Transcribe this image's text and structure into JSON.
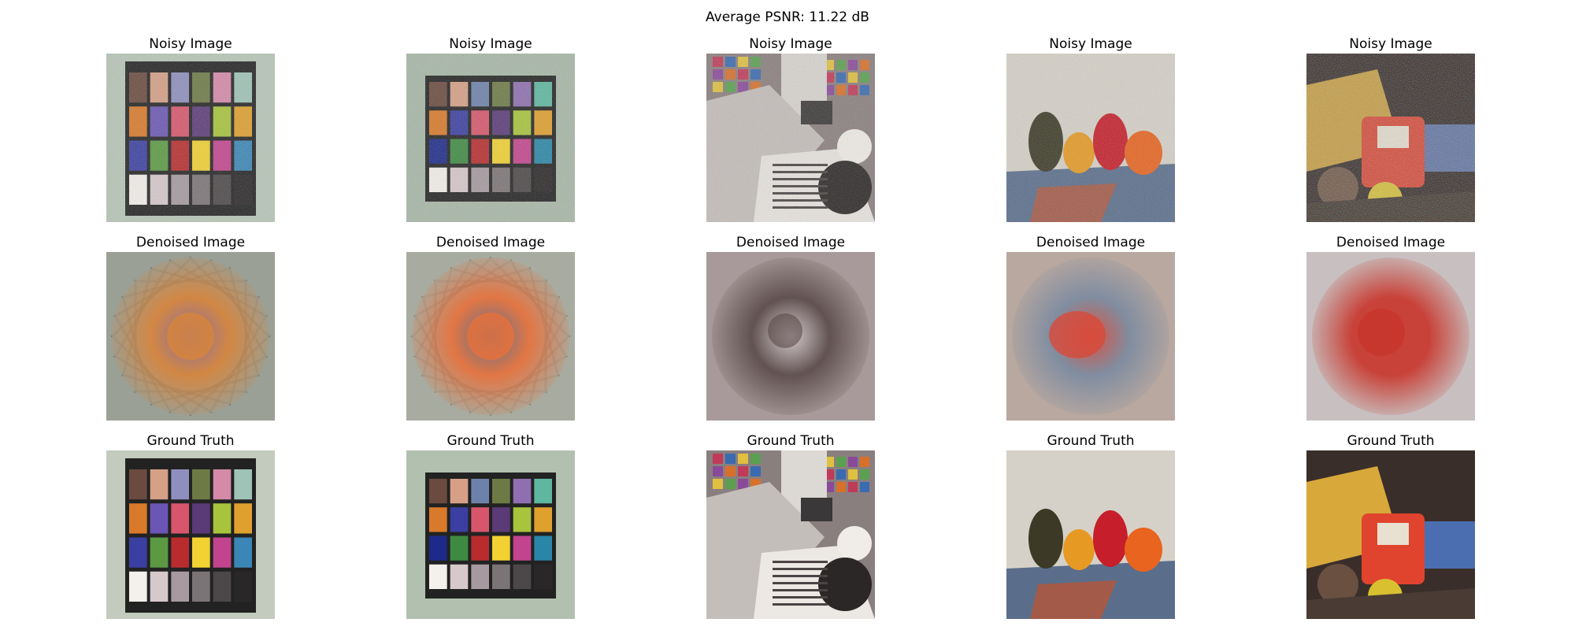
{
  "figure": {
    "suptitle": "Average PSNR: 11.22 dB"
  },
  "rows": [
    {
      "title": "Noisy Image",
      "images": [
        {
          "scene": "color-checker-portrait",
          "palette": [
            "#b8c6b8",
            "#222",
            "#6b4a3f",
            "#d6a086",
            "#8f8fbf",
            "#6e7a45",
            "#d58aa8",
            "#9fc3b6",
            "#d97a2a",
            "#6b56b5",
            "#d8566c",
            "#5b3a78",
            "#a8c43c",
            "#e0a02e",
            "#3b3fa1",
            "#5b9a43",
            "#b82c2e",
            "#f1d232",
            "#c3448e",
            "#3a86b7",
            "#f4f0ec",
            "#d7c8cc",
            "#a69aa0",
            "#7b7476",
            "#4c4748",
            "#2a2728"
          ]
        },
        {
          "scene": "color-checker-landscape",
          "palette": [
            "#a8b8a8",
            "#222",
            "#6b4a3f",
            "#d6a086",
            "#6d82aa",
            "#6e7a45",
            "#8f6fb0",
            "#5fb7a0",
            "#d97a2a",
            "#3b3fa1",
            "#d8566c",
            "#5b3a78",
            "#a8c43c",
            "#e0a02e",
            "#1d2a8a",
            "#3f8a43",
            "#b82c2e",
            "#f1d232",
            "#c3448e",
            "#2a86a7",
            "#f4f0ec",
            "#d7c8cc",
            "#a69aa0",
            "#7b7476",
            "#4c4748",
            "#2a2728"
          ]
        },
        {
          "scene": "office-desk",
          "palette": [
            "#8a7f7f",
            "#e8e4e0",
            "#c4bebb",
            "#3a3838",
            "#2b2727",
            "#d8d4d0"
          ]
        },
        {
          "scene": "peppers",
          "palette": [
            "#d6d1c8",
            "#3c3a27",
            "#e69a24",
            "#c61e2a",
            "#e8641f",
            "#5a6e8c",
            "#a35a48"
          ]
        },
        {
          "scene": "toy-truck",
          "palette": [
            "#2e2422",
            "#c79b3a",
            "#d8402e",
            "#5a6ea0",
            "#6a5040",
            "#3a3028"
          ]
        }
      ]
    },
    {
      "title": "Denoised Image",
      "images": [
        {
          "scene": "blur-checker-a",
          "palette": [
            "#9aa096",
            "#8a6aa0",
            "#d8843a",
            "#6a4a8a",
            "#c8b040"
          ]
        },
        {
          "scene": "blur-checker-b",
          "palette": [
            "#a8aca0",
            "#5a6a8a",
            "#e8703a",
            "#7a4a6a",
            "#4a8a6a"
          ]
        },
        {
          "scene": "blur-desk",
          "palette": [
            "#a89a9a",
            "#d8d0d0",
            "#5a4a4a",
            "#c0b4b0"
          ]
        },
        {
          "scene": "blur-peppers",
          "palette": [
            "#b8a8a0",
            "#d84a3a",
            "#7a8aa0",
            "#e8c0a8"
          ]
        },
        {
          "scene": "blur-truck",
          "palette": [
            "#c8c0c0",
            "#4a3028",
            "#c8342a",
            "#6a4034"
          ]
        }
      ]
    },
    {
      "title": "Ground Truth",
      "images": [
        {
          "scene": "color-checker-portrait",
          "palette": [
            "#c2cbbd",
            "#222",
            "#6b4a3f",
            "#d6a086",
            "#8f8fbf",
            "#6e7a45",
            "#d58aa8",
            "#9fc3b6",
            "#d97a2a",
            "#6b56b5",
            "#d8566c",
            "#5b3a78",
            "#a8c43c",
            "#e0a02e",
            "#3b3fa1",
            "#5b9a43",
            "#b82c2e",
            "#f1d232",
            "#c3448e",
            "#3a86b7",
            "#f4f0ec",
            "#d7c8cc",
            "#a69aa0",
            "#7b7476",
            "#4c4748",
            "#2a2728"
          ]
        },
        {
          "scene": "color-checker-landscape",
          "palette": [
            "#b2c0b0",
            "#222",
            "#6b4a3f",
            "#d6a086",
            "#6d82aa",
            "#6e7a45",
            "#8f6fb0",
            "#5fb7a0",
            "#d97a2a",
            "#3b3fa1",
            "#d8566c",
            "#5b3a78",
            "#a8c43c",
            "#e0a02e",
            "#1d2a8a",
            "#3f8a43",
            "#b82c2e",
            "#f1d232",
            "#c3448e",
            "#2a86a7",
            "#f4f0ec",
            "#d7c8cc",
            "#a69aa0",
            "#7b7476",
            "#4c4748",
            "#2a2728"
          ]
        },
        {
          "scene": "office-desk",
          "palette": [
            "#8a7f7f",
            "#ece8e4",
            "#c4bebb",
            "#3a3838",
            "#2b2727",
            "#dcd8d4"
          ]
        },
        {
          "scene": "peppers",
          "palette": [
            "#d6d1c8",
            "#3c3a27",
            "#e69a24",
            "#c61e2a",
            "#e8641f",
            "#5a6e8c",
            "#a35a48"
          ]
        },
        {
          "scene": "toy-truck",
          "palette": [
            "#3a2e2a",
            "#d8a83a",
            "#e0442e",
            "#4a6eb0",
            "#6a5040",
            "#4a3c34"
          ]
        }
      ]
    }
  ]
}
